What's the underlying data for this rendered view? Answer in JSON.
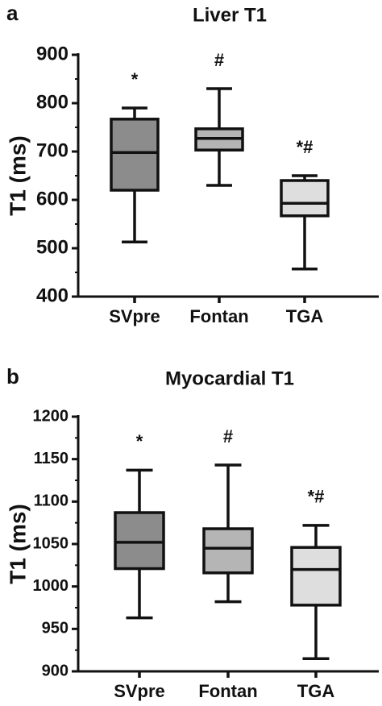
{
  "chart_data": [
    {
      "type": "box",
      "panel_label": "a",
      "title": "Liver T1",
      "ylabel": "T1 (ms)",
      "categories": [
        "SVpre",
        "Fontan",
        "TGA"
      ],
      "min": [
        513,
        630,
        457
      ],
      "q1": [
        620,
        703,
        567
      ],
      "median": [
        698,
        727,
        593
      ],
      "q3": [
        767,
        747,
        640
      ],
      "max": [
        790,
        830,
        650
      ],
      "annotations": [
        "*",
        "#",
        "*#"
      ],
      "colors": [
        "#8c8c8c",
        "#b5b5b5",
        "#dedede"
      ],
      "ylim": [
        400,
        900
      ],
      "yticks": [
        400,
        500,
        600,
        700,
        800,
        900
      ]
    },
    {
      "type": "box",
      "panel_label": "b",
      "title": "Myocardial T1",
      "ylabel": "T1 (ms)",
      "categories": [
        "SVpre",
        "Fontan",
        "TGA"
      ],
      "min": [
        963,
        982,
        915
      ],
      "q1": [
        1021,
        1016,
        978
      ],
      "median": [
        1052,
        1045,
        1020
      ],
      "q3": [
        1087,
        1068,
        1046
      ],
      "max": [
        1137,
        1143,
        1072
      ],
      "annotations": [
        "*",
        "#",
        "*#"
      ],
      "colors": [
        "#8c8c8c",
        "#b5b5b5",
        "#dedede"
      ],
      "ylim": [
        900,
        1200
      ],
      "yticks": [
        900,
        950,
        1000,
        1050,
        1100,
        1150,
        1200
      ]
    }
  ]
}
